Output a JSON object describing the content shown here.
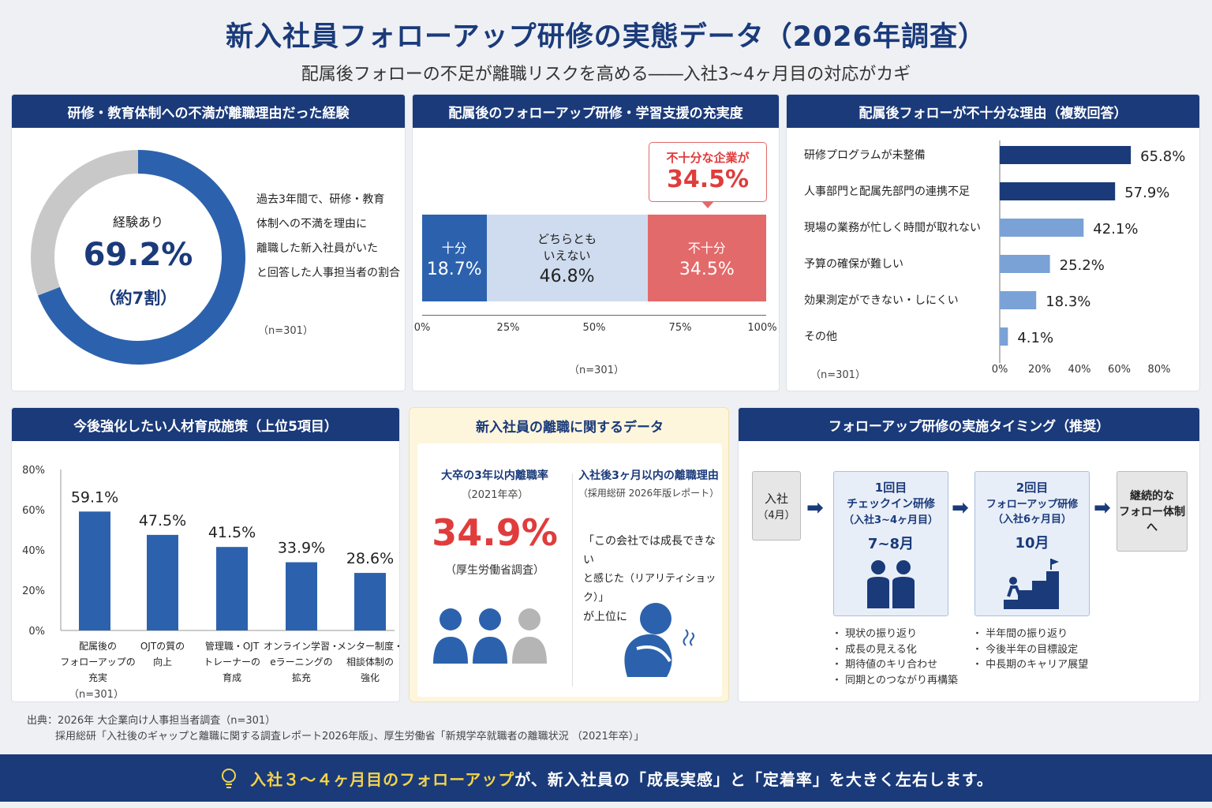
{
  "title": "新入社員フォローアップ研修の実態データ（2026年調査）",
  "subtitle": "配属後フォローの不足が離職リスクを高める――入社3~4ヶ月目の対応がカギ",
  "colors": {
    "navy": "#1a3a7a",
    "blue": "#2c62ad",
    "lightblue": "#7aa2d6",
    "paleblue": "#cfdcef",
    "red": "#e36a6a",
    "gray": "#c8c8c8",
    "highlight": "#f4d34a"
  },
  "panel1": {
    "header": "研修・教育体制への不満が離職理由だった経験",
    "center_label": "経験あり",
    "center_value": "69.2%",
    "center_sub": "（約7割）",
    "desc": [
      "過去3年間で、研修・教育",
      "体制への不満を理由に",
      "離職した新入社員がいた",
      "と回答した人事担当者の割合"
    ],
    "n": "（n=301）"
  },
  "panel2": {
    "header": "配属後のフォローアップ研修・学習支援の充実度",
    "callout_line1": "不十分な企業が",
    "callout_value": "34.5%",
    "segments": [
      {
        "label": "十分",
        "value_text": "18.7%"
      },
      {
        "label_line1": "どちらとも",
        "label_line2": "いえない",
        "value_text": "46.8%"
      },
      {
        "label": "不十分",
        "value_text": "34.5%"
      }
    ],
    "ticks": [
      "0%",
      "25%",
      "50%",
      "75%",
      "100%"
    ],
    "n": "（n=301）"
  },
  "panel3": {
    "header": "配属後フォローが不十分な理由（複数回答）",
    "value_labels": [
      "65.8%",
      "57.9%",
      "42.1%",
      "25.2%",
      "18.3%",
      "4.1%"
    ],
    "ticks": [
      "0%",
      "20%",
      "40%",
      "60%",
      "80%"
    ],
    "n": "（n=301）"
  },
  "panel4": {
    "header": "今後強化したい人材育成施策（上位5項目）",
    "yticks": [
      "80%",
      "60%",
      "40%",
      "20%",
      "0%"
    ],
    "value_labels": [
      "59.1%",
      "47.5%",
      "41.5%",
      "33.9%",
      "28.6%"
    ],
    "cat_lines": [
      [
        "配属後の",
        "フォローアップの",
        "充実"
      ],
      [
        "OJTの質の",
        "向上"
      ],
      [
        "管理職・OJT",
        "トレーナーの",
        "育成"
      ],
      [
        "オンライン学習・",
        "eラーニングの",
        "拡充"
      ],
      [
        "メンター制度・",
        "相談体制の",
        "強化"
      ]
    ],
    "n": "（n=301）"
  },
  "panel5": {
    "header": "新入社員の離職に関するデータ",
    "left_title": "大卒の3年以内離職率",
    "left_year": "（2021年卒）",
    "left_value": "34.9%",
    "left_source": "（厚生労働省調査）",
    "right_title": "入社後3ヶ月以内の離職理由",
    "right_source": "（採用総研 2026年版レポート）",
    "quote_lines": [
      "「この会社では成長できない",
      "と感じた（リアリティショック）」",
      "が上位に"
    ]
  },
  "panel6": {
    "header": "フォローアップ研修の実施タイミング（推奨）",
    "step0_line1": "入社",
    "step0_line2": "（4月）",
    "step1_line1": "1回目",
    "step1_line2": "チェックイン研修",
    "step1_line3": "（入社3~4ヶ月目）",
    "step1_time": "7~8月",
    "step2_line1": "2回目",
    "step2_line2": "フォローアップ研修",
    "step2_line3": "（入社6ヶ月目）",
    "step2_time": "10月",
    "step3_line1": "継続的な",
    "step3_line2": "フォロー体制",
    "step3_line3": "へ",
    "bullets1": [
      "・ 現状の振り返り",
      "・ 成長の見える化",
      "・ 期待値のキリ合わせ",
      "・ 同期とのつながり再構築"
    ],
    "bullets2": [
      "・ 半年間の振り返り",
      "・ 今後半年の目標設定",
      "・ 中長期のキャリア展望"
    ]
  },
  "source_line1": "出典：2026年 大企業向け人事担当者調査（n=301）",
  "source_line2": "採用総研「入社後のギャップと離職に関する調査レポート2026年版」、厚生労働省「新規学卒就職者の離職状況 （2021年卒）」",
  "footer": {
    "highlight": "入社３～４ヶ月目のフォローアップ",
    "rest": "が、新入社員の「成長実感」と「定着率」を大きく左右します。"
  },
  "chart_data": [
    {
      "type": "pie",
      "title": "研修・教育体制への不満が離職理由だった経験",
      "categories": [
        "経験あり",
        ""
      ],
      "values": [
        69.2,
        30.8
      ]
    },
    {
      "type": "bar",
      "title": "配属後のフォローアップ研修・学習支援の充実度",
      "categories": [
        "十分",
        "どちらともいえない",
        "不十分"
      ],
      "values": [
        18.7,
        46.8,
        34.5
      ],
      "xlim": [
        0,
        100
      ],
      "stacked": true
    },
    {
      "type": "bar",
      "title": "配属後フォローが不十分な理由（複数回答）",
      "orientation": "horizontal",
      "categories": [
        "研修プログラムが未整備",
        "人事部門と配属先部門の連携不足",
        "現場の業務が忙しく時間が取れない",
        "予算の確保が難しい",
        "効果測定ができない・しにくい",
        "その他"
      ],
      "values": [
        65.8,
        57.9,
        42.1,
        25.2,
        18.3,
        4.1
      ],
      "xlim": [
        0,
        80
      ]
    },
    {
      "type": "bar",
      "title": "今後強化したい人材育成施策（上位5項目）",
      "categories": [
        "配属後のフォローアップの充実",
        "OJTの質の向上",
        "管理職・OJTトレーナーの育成",
        "オンライン学習・eラーニングの拡充",
        "メンター制度・相談体制の強化"
      ],
      "values": [
        59.1,
        47.5,
        41.5,
        33.9,
        28.6
      ],
      "ylim": [
        0,
        80
      ]
    }
  ]
}
